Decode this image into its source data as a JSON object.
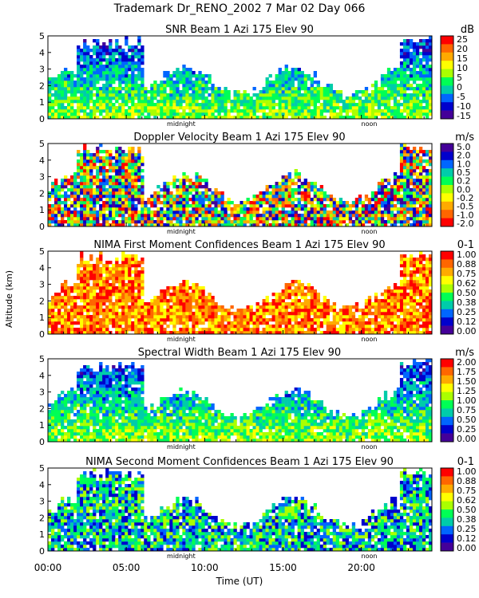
{
  "figure": {
    "header": "Trademark Dr_RENO_2002    7 Mar 02 Day 066",
    "ylabel": "Altitude (km)",
    "xlabel": "Time (UT)",
    "x_ticks": [
      "00:00",
      "05:00",
      "10:00",
      "15:00",
      "20:00"
    ],
    "markers": {
      "midnight": "midnight",
      "noon": "noon"
    }
  },
  "chart_data": [
    {
      "type": "heatmap",
      "title": "SNR Beam 1 Azi 175 Elev 90",
      "unit": "dB",
      "x_range_hours": [
        0,
        24.5
      ],
      "ylim": [
        0,
        5
      ],
      "y_ticks": [
        "0",
        "1",
        "2",
        "3",
        "4",
        "5"
      ],
      "colorbar_ticks": [
        "25",
        "20",
        "15",
        "10",
        "5",
        "0",
        "-5",
        "-10",
        "-15"
      ],
      "colorbar_colors": [
        "#ff0000",
        "#ff6600",
        "#ffaa00",
        "#ffff00",
        "#aaff00",
        "#00ff55",
        "#00ccaa",
        "#0066ff",
        "#0000cc",
        "#440099"
      ]
    },
    {
      "type": "heatmap",
      "title": "Doppler Velocity Beam 1 Azi 175 Elev 90",
      "unit": "m/s",
      "x_range_hours": [
        0,
        24.5
      ],
      "ylim": [
        0,
        5
      ],
      "y_ticks": [
        "0",
        "1",
        "2",
        "3",
        "4",
        "5"
      ],
      "colorbar_ticks": [
        "5.0",
        "2.0",
        "1.0",
        "0.5",
        "0.2",
        "0.0",
        "-0.2",
        "-0.5",
        "-1.0",
        "-2.0"
      ],
      "colorbar_colors": [
        "#440099",
        "#0000cc",
        "#0066ff",
        "#00ccaa",
        "#00ff55",
        "#aaff00",
        "#ffff00",
        "#ffaa00",
        "#ff6600",
        "#ff0000"
      ]
    },
    {
      "type": "heatmap",
      "title": "NIMA First Moment Confidences Beam 1 Azi 175 Elev 90",
      "unit": "0-1",
      "x_range_hours": [
        0,
        24.5
      ],
      "ylim": [
        0,
        5
      ],
      "y_ticks": [
        "0",
        "1",
        "2",
        "3",
        "4",
        "5"
      ],
      "colorbar_ticks": [
        "1.00",
        "0.88",
        "0.75",
        "0.62",
        "0.50",
        "0.38",
        "0.25",
        "0.12",
        "0.00"
      ],
      "colorbar_colors": [
        "#ff0000",
        "#ff6600",
        "#ffaa00",
        "#ffff00",
        "#aaff00",
        "#00ff55",
        "#00ccaa",
        "#0066ff",
        "#0000cc",
        "#440099"
      ]
    },
    {
      "type": "heatmap",
      "title": "Spectral Width Beam 1 Azi 175 Elev 90",
      "unit": "m/s",
      "x_range_hours": [
        0,
        24.5
      ],
      "ylim": [
        0,
        5
      ],
      "y_ticks": [
        "0",
        "1",
        "2",
        "3",
        "4",
        "5"
      ],
      "colorbar_ticks": [
        "2.00",
        "1.75",
        "1.50",
        "1.25",
        "1.00",
        "0.75",
        "0.50",
        "0.25",
        "0.00"
      ],
      "colorbar_colors": [
        "#ff0000",
        "#ff6600",
        "#ffaa00",
        "#ffff00",
        "#aaff00",
        "#00ff55",
        "#00ccaa",
        "#0066ff",
        "#0000cc",
        "#440099"
      ]
    },
    {
      "type": "heatmap",
      "title": "NIMA Second Moment Confidences Beam 1 Azi 175 Elev 90",
      "unit": "0-1",
      "x_range_hours": [
        0,
        24.5
      ],
      "ylim": [
        0,
        5
      ],
      "y_ticks": [
        "0",
        "1",
        "2",
        "3",
        "4",
        "5"
      ],
      "colorbar_ticks": [
        "1.00",
        "0.88",
        "0.75",
        "0.62",
        "0.50",
        "0.38",
        "0.25",
        "0.12",
        "0.00"
      ],
      "colorbar_colors": [
        "#ff0000",
        "#ff6600",
        "#ffaa00",
        "#ffff00",
        "#aaff00",
        "#00ff55",
        "#00ccaa",
        "#0066ff",
        "#0000cc",
        "#440099"
      ]
    }
  ]
}
